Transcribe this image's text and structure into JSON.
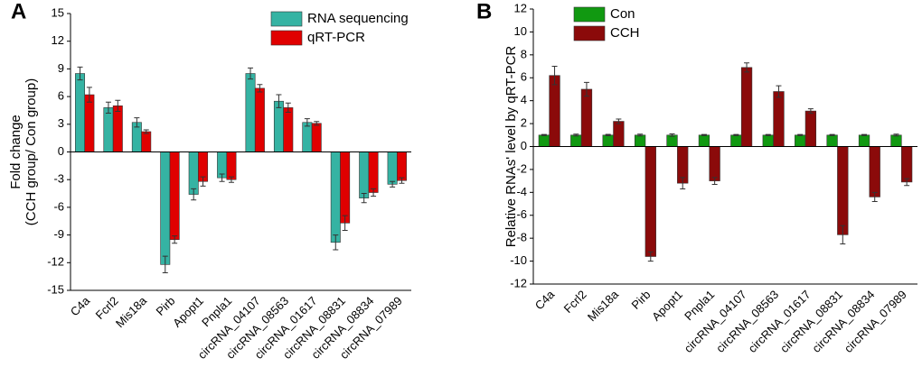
{
  "chart_data": [
    {
      "type": "bar",
      "panel_label": "A",
      "y_label": [
        "Fold change",
        "(CCH group/ Con group)"
      ],
      "categories": [
        "C4a",
        "Fcrl2",
        "Mis18a",
        "Pirb",
        "Apopt1",
        "Pnpla1",
        "circRNA_04107",
        "circRNA_08563",
        "circRNA_01617",
        "circRNA_08831",
        "circRNA_08834",
        "circRNA_07989"
      ],
      "series": [
        {
          "name": "RNA sequencing",
          "color": "#35b3a3",
          "values": [
            8.5,
            4.8,
            3.2,
            -12.2,
            -4.6,
            -2.8,
            8.5,
            5.5,
            3.2,
            -9.8,
            -5.0,
            -3.5
          ],
          "errors": [
            0.7,
            0.6,
            0.5,
            0.9,
            0.6,
            0.4,
            0.6,
            0.7,
            0.4,
            0.8,
            0.5,
            0.3
          ]
        },
        {
          "name": "qRT-PCR",
          "color": "#e00000",
          "values": [
            6.2,
            5.0,
            2.2,
            -9.5,
            -3.2,
            -3.0,
            6.9,
            4.8,
            3.1,
            -7.7,
            -4.4,
            -3.1
          ],
          "errors": [
            0.8,
            0.6,
            0.2,
            0.4,
            0.5,
            0.3,
            0.4,
            0.5,
            0.2,
            0.8,
            0.4,
            0.3
          ]
        }
      ],
      "ylim": [
        -15,
        15
      ],
      "yticks": [
        -15,
        -12,
        -9,
        -6,
        -3,
        0,
        3,
        6,
        9,
        12,
        15
      ],
      "legend": "upper-right"
    },
    {
      "type": "bar",
      "panel_label": "B",
      "y_label": [
        "Relative RNAs' level by qRT-PCR"
      ],
      "categories": [
        "C4a",
        "Fcrl2",
        "Mis18a",
        "Pirb",
        "Apopt1",
        "Pnpla1",
        "circRNA_04107",
        "circRNA_08563",
        "circRNA_01617",
        "circRNA_08831",
        "circRNA_08834",
        "circRNA_07989"
      ],
      "series": [
        {
          "name": "Con",
          "color": "#119911",
          "values": [
            1,
            1,
            1,
            1,
            1,
            1,
            1,
            1,
            1,
            1,
            1,
            1
          ],
          "errors": [
            0.05,
            0.08,
            0.06,
            0.08,
            0.1,
            0.05,
            0.05,
            0.05,
            0.05,
            0.05,
            0.05,
            0.08
          ]
        },
        {
          "name": "CCH",
          "color": "#8b0a0a",
          "values": [
            6.2,
            5.0,
            2.2,
            -9.6,
            -3.2,
            -3.0,
            6.9,
            4.8,
            3.1,
            -7.7,
            -4.4,
            -3.1
          ],
          "errors": [
            0.8,
            0.6,
            0.2,
            0.4,
            0.5,
            0.3,
            0.4,
            0.5,
            0.2,
            0.8,
            0.4,
            0.3
          ]
        }
      ],
      "ylim": [
        -12,
        12
      ],
      "yticks": [
        -12,
        -10,
        -8,
        -6,
        -4,
        -2,
        0,
        2,
        4,
        6,
        8,
        10,
        12
      ],
      "legend": "upper-left"
    }
  ]
}
